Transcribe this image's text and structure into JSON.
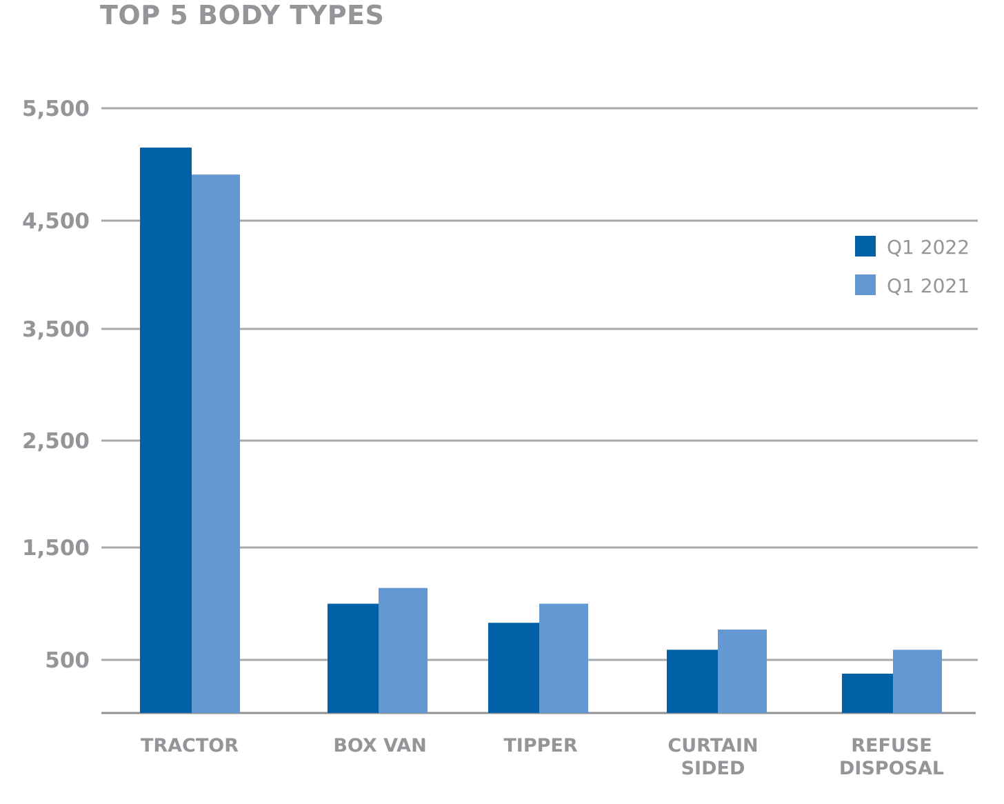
{
  "chart_data": {
    "type": "bar",
    "title": "TOP 5 BODY TYPES",
    "categories": [
      [
        "TRACTOR"
      ],
      [
        "BOX VAN"
      ],
      [
        "TIPPER"
      ],
      [
        "CURTAIN",
        "SIDED"
      ],
      [
        "REFUSE",
        "DISPOSAL"
      ]
    ],
    "series": [
      {
        "name": "Q1 2022",
        "color": "#0061a7",
        "values": [
          5150,
          1000,
          830,
          590,
          370
        ]
      },
      {
        "name": "Q1 2021",
        "color": "#6498d2",
        "values": [
          4910,
          1140,
          1000,
          770,
          590
        ]
      }
    ],
    "yticks": [
      500,
      1500,
      2500,
      3500,
      4500,
      5500
    ],
    "ytick_labels": [
      "500",
      "1,500",
      "2,500",
      "3,500",
      "4,500",
      "5,500"
    ],
    "ylim": [
      0,
      5500
    ],
    "grid": true,
    "legend_position": "right"
  }
}
